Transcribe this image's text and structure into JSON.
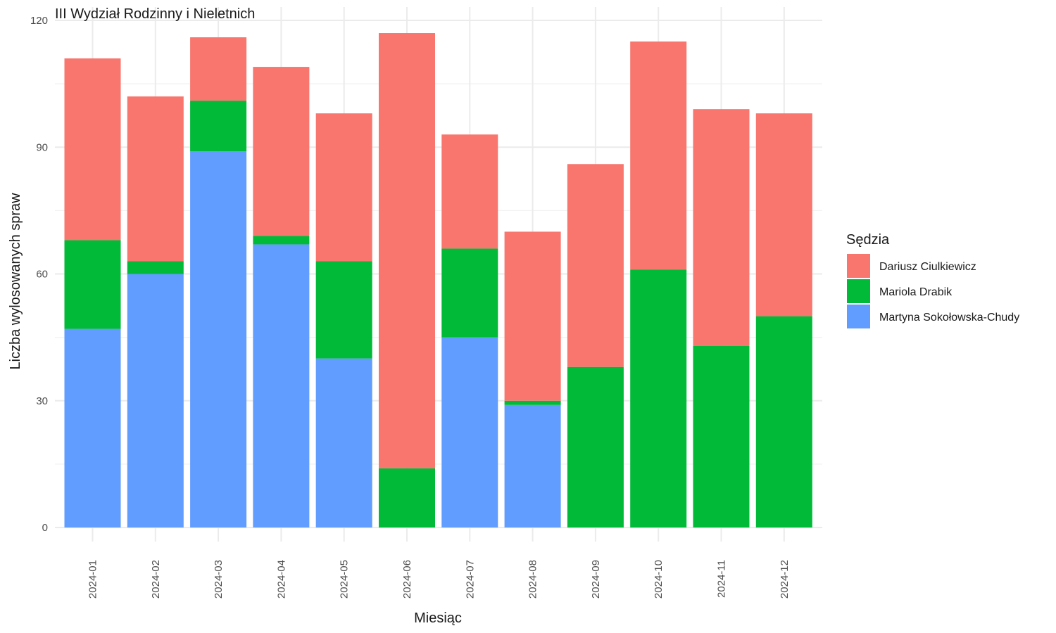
{
  "chart_data": {
    "type": "bar",
    "stacked": true,
    "title": "III Wydział Rodzinny i Nieletnich",
    "xlabel": "Miesiąc",
    "ylabel": "Liczba wylosowanych spraw",
    "ylim": [
      0,
      120
    ],
    "yticks": [
      0,
      30,
      60,
      90,
      120
    ],
    "grid": true,
    "legend_title": "Sędzia",
    "legend_position": "right",
    "categories": [
      "2024-01",
      "2024-02",
      "2024-03",
      "2024-04",
      "2024-05",
      "2024-06",
      "2024-07",
      "2024-08",
      "2024-09",
      "2024-10",
      "2024-11",
      "2024-12"
    ],
    "series": [
      {
        "name": "Martyna Sokołowska-Chudy",
        "color": "#619CFF",
        "values": [
          47,
          60,
          89,
          67,
          40,
          0,
          45,
          29,
          0,
          0,
          0,
          0
        ]
      },
      {
        "name": "Mariola Drabik",
        "color": "#00BA38",
        "values": [
          21,
          3,
          12,
          2,
          23,
          14,
          21,
          1,
          38,
          61,
          43,
          50
        ]
      },
      {
        "name": "Dariusz Ciulkiewicz",
        "color": "#F8766D",
        "values": [
          43,
          39,
          15,
          40,
          35,
          103,
          27,
          40,
          48,
          54,
          56,
          48
        ]
      }
    ],
    "legend_order": [
      "Dariusz Ciulkiewicz",
      "Mariola Drabik",
      "Martyna Sokołowska-Chudy"
    ]
  }
}
